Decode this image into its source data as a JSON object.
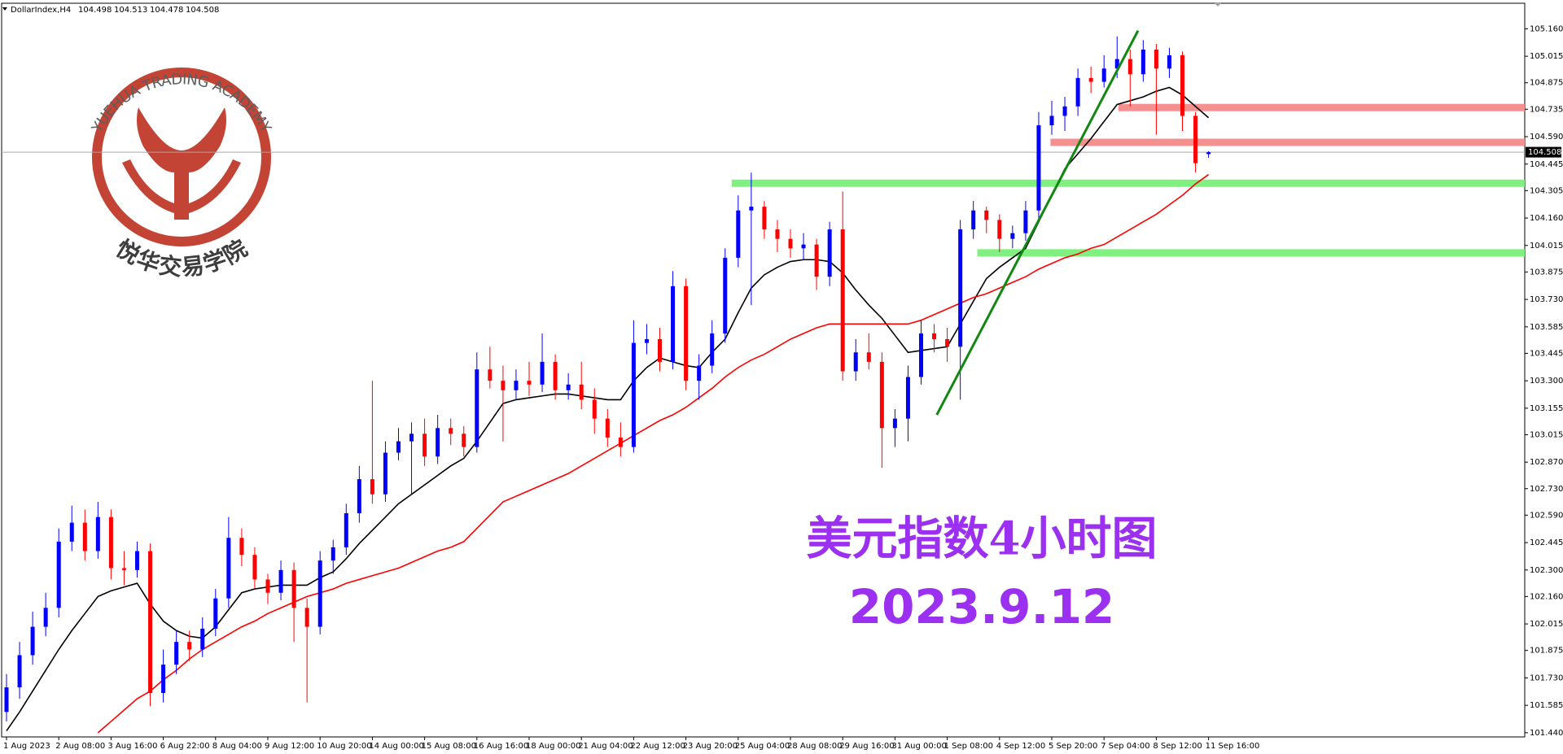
{
  "chart_data": {
    "type": "candlestick",
    "title": "DollarIndex,H4",
    "up_color": "#0000ff",
    "down_color": "#ff0000",
    "ylim": [
      101.418,
      105.295
    ],
    "yticks": [
      {
        "value": 105.16,
        "label": "105.160"
      },
      {
        "value": 105.015,
        "label": "105.015"
      },
      {
        "value": 104.875,
        "label": "104.875"
      },
      {
        "value": 104.735,
        "label": "104.735"
      },
      {
        "value": 104.59,
        "label": "104.590"
      },
      {
        "value": 104.445,
        "label": "104.445"
      },
      {
        "value": 104.305,
        "label": "104.305"
      },
      {
        "value": 104.16,
        "label": "104.160"
      },
      {
        "value": 104.015,
        "label": "104.015"
      },
      {
        "value": 103.875,
        "label": "103.875"
      },
      {
        "value": 103.73,
        "label": "103.730"
      },
      {
        "value": 103.585,
        "label": "103.585"
      },
      {
        "value": 103.445,
        "label": "103.445"
      },
      {
        "value": 103.3,
        "label": "103.300"
      },
      {
        "value": 103.155,
        "label": "103.155"
      },
      {
        "value": 103.015,
        "label": "103.015"
      },
      {
        "value": 102.87,
        "label": "102.870"
      },
      {
        "value": 102.73,
        "label": "102.730"
      },
      {
        "value": 102.59,
        "label": "102.590"
      },
      {
        "value": 102.445,
        "label": "102.445"
      },
      {
        "value": 102.3,
        "label": "102.300"
      },
      {
        "value": 102.16,
        "label": "102.160"
      },
      {
        "value": 102.015,
        "label": "102.015"
      },
      {
        "value": 101.875,
        "label": "101.875"
      },
      {
        "value": 101.73,
        "label": "101.730"
      },
      {
        "value": 101.585,
        "label": "101.585"
      },
      {
        "value": 101.44,
        "label": "101.440"
      }
    ],
    "categories": [
      "1 Aug 2023",
      null,
      null,
      null,
      "2 Aug 08:00",
      null,
      null,
      null,
      "3 Aug 16:00",
      null,
      null,
      null,
      "6 Aug 22:00",
      null,
      null,
      null,
      "8 Aug 04:00",
      null,
      null,
      null,
      "9 Aug 12:00",
      null,
      null,
      null,
      "10 Aug 20:00",
      null,
      null,
      null,
      "14 Aug 00:00",
      null,
      null,
      null,
      "15 Aug 08:00",
      null,
      null,
      null,
      "16 Aug 16:00",
      null,
      null,
      null,
      "18 Aug 00:00",
      null,
      null,
      null,
      "21 Aug 04:00",
      null,
      null,
      null,
      "22 Aug 12:00",
      null,
      null,
      null,
      "23 Aug 20:00",
      null,
      null,
      null,
      "25 Aug 04:00",
      null,
      null,
      null,
      "28 Aug 08:00",
      null,
      null,
      null,
      "29 Aug 16:00",
      null,
      null,
      null,
      "31 Aug 00:00",
      null,
      null,
      null,
      "1 Sep 08:00",
      null,
      null,
      null,
      "4 Sep 12:00",
      null,
      null,
      null,
      "5 Sep 20:00",
      null,
      null,
      null,
      "7 Sep 04:00",
      null,
      null,
      null,
      "8 Sep 12:00",
      null,
      null,
      null,
      "11 Sep 16:00"
    ],
    "ohlc": [
      [
        101.55,
        101.75,
        101.5,
        101.68
      ],
      [
        101.68,
        101.92,
        101.62,
        101.85
      ],
      [
        101.85,
        102.08,
        101.8,
        102.0
      ],
      [
        102.0,
        102.18,
        101.95,
        102.1
      ],
      [
        102.1,
        102.52,
        102.05,
        102.45
      ],
      [
        102.45,
        102.64,
        102.4,
        102.55
      ],
      [
        102.55,
        102.62,
        102.35,
        102.4
      ],
      [
        102.4,
        102.66,
        102.36,
        102.58
      ],
      [
        102.58,
        102.62,
        102.25,
        102.31
      ],
      [
        102.31,
        102.4,
        102.22,
        102.3
      ],
      [
        102.3,
        102.45,
        102.26,
        102.4
      ],
      [
        102.4,
        102.44,
        101.58,
        101.65
      ],
      [
        101.65,
        101.88,
        101.6,
        101.8
      ],
      [
        101.8,
        101.98,
        101.75,
        101.92
      ],
      [
        101.92,
        101.98,
        101.82,
        101.88
      ],
      [
        101.88,
        102.05,
        101.84,
        101.99
      ],
      [
        101.99,
        102.2,
        101.95,
        102.15
      ],
      [
        102.15,
        102.58,
        102.1,
        102.47
      ],
      [
        102.47,
        102.52,
        102.32,
        102.38
      ],
      [
        102.38,
        102.42,
        102.2,
        102.25
      ],
      [
        102.25,
        102.28,
        102.12,
        102.18
      ],
      [
        102.18,
        102.35,
        102.14,
        102.3
      ],
      [
        102.3,
        102.34,
        101.92,
        102.1
      ],
      [
        102.1,
        102.15,
        101.6,
        102.0
      ],
      [
        102.0,
        102.4,
        101.96,
        102.35
      ],
      [
        102.35,
        102.46,
        102.28,
        102.42
      ],
      [
        102.42,
        102.65,
        102.38,
        102.6
      ],
      [
        102.6,
        102.85,
        102.55,
        102.78
      ],
      [
        102.78,
        103.3,
        102.65,
        102.7
      ],
      [
        102.7,
        102.98,
        102.66,
        102.92
      ],
      [
        102.92,
        103.05,
        102.88,
        102.98
      ],
      [
        102.98,
        103.08,
        102.7,
        103.02
      ],
      [
        103.02,
        103.1,
        102.85,
        102.9
      ],
      [
        102.9,
        103.12,
        102.86,
        103.05
      ],
      [
        103.05,
        103.1,
        102.96,
        103.02
      ],
      [
        103.02,
        103.06,
        102.9,
        102.95
      ],
      [
        102.95,
        103.45,
        102.92,
        103.36
      ],
      [
        103.36,
        103.48,
        103.26,
        103.3
      ],
      [
        103.3,
        103.38,
        102.98,
        103.25
      ],
      [
        103.25,
        103.36,
        103.2,
        103.3
      ],
      [
        103.3,
        103.4,
        103.22,
        103.28
      ],
      [
        103.28,
        103.55,
        103.24,
        103.4
      ],
      [
        103.4,
        103.44,
        103.2,
        103.25
      ],
      [
        103.25,
        103.34,
        103.2,
        103.28
      ],
      [
        103.28,
        103.4,
        103.15,
        103.2
      ],
      [
        103.2,
        103.26,
        103.02,
        103.1
      ],
      [
        103.1,
        103.15,
        102.95,
        103.0
      ],
      [
        103.0,
        103.08,
        102.9,
        102.95
      ],
      [
        102.95,
        103.62,
        102.92,
        103.5
      ],
      [
        103.5,
        103.6,
        103.44,
        103.52
      ],
      [
        103.52,
        103.58,
        103.35,
        103.4
      ],
      [
        103.4,
        103.88,
        103.36,
        103.8
      ],
      [
        103.8,
        103.84,
        103.25,
        103.3
      ],
      [
        103.3,
        103.44,
        103.2,
        103.38
      ],
      [
        103.38,
        103.62,
        103.34,
        103.55
      ],
      [
        103.55,
        104.0,
        103.5,
        103.95
      ],
      [
        103.95,
        104.28,
        103.9,
        104.2
      ],
      [
        104.2,
        104.4,
        103.7,
        104.22
      ],
      [
        104.22,
        104.25,
        104.05,
        104.1
      ],
      [
        104.1,
        104.15,
        103.98,
        104.05
      ],
      [
        104.05,
        104.1,
        103.95,
        104.0
      ],
      [
        104.0,
        104.08,
        103.94,
        104.02
      ],
      [
        104.02,
        104.05,
        103.78,
        103.85
      ],
      [
        103.85,
        104.14,
        103.8,
        104.1
      ],
      [
        104.1,
        104.3,
        103.3,
        103.35
      ],
      [
        103.35,
        103.52,
        103.3,
        103.45
      ],
      [
        103.45,
        103.55,
        103.36,
        103.4
      ],
      [
        103.4,
        103.45,
        102.84,
        103.05
      ],
      [
        103.05,
        103.15,
        102.95,
        103.1
      ],
      [
        103.1,
        103.38,
        102.98,
        103.32
      ],
      [
        103.32,
        103.62,
        103.28,
        103.55
      ],
      [
        103.55,
        103.6,
        103.45,
        103.52
      ],
      [
        103.52,
        103.58,
        103.4,
        103.48
      ],
      [
        103.48,
        104.15,
        103.2,
        104.1
      ],
      [
        104.1,
        104.25,
        104.05,
        104.2
      ],
      [
        104.2,
        104.22,
        104.08,
        104.15
      ],
      [
        104.15,
        104.18,
        103.98,
        104.05
      ],
      [
        104.05,
        104.12,
        104.0,
        104.08
      ],
      [
        104.08,
        104.25,
        104.04,
        104.2
      ],
      [
        104.2,
        104.72,
        104.15,
        104.65
      ],
      [
        104.65,
        104.78,
        104.6,
        104.7
      ],
      [
        104.7,
        104.8,
        104.62,
        104.75
      ],
      [
        104.75,
        104.95,
        104.7,
        104.9
      ],
      [
        104.9,
        104.96,
        104.82,
        104.88
      ],
      [
        104.88,
        105.02,
        104.85,
        104.95
      ],
      [
        104.95,
        105.12,
        104.9,
        105.0
      ],
      [
        105.0,
        105.05,
        104.75,
        104.92
      ],
      [
        104.92,
        105.1,
        104.88,
        105.05
      ],
      [
        105.05,
        105.08,
        104.6,
        104.95
      ],
      [
        104.95,
        105.06,
        104.9,
        105.02
      ],
      [
        105.02,
        105.04,
        104.62,
        104.7
      ],
      [
        104.7,
        104.72,
        104.4,
        104.45
      ],
      [
        104.498,
        104.513,
        104.478,
        104.508
      ]
    ],
    "lines": [
      {
        "color": "#000000",
        "values": [
          101.45,
          101.55,
          101.66,
          101.77,
          101.88,
          101.98,
          102.07,
          102.16,
          102.19,
          102.21,
          102.23,
          102.12,
          102.03,
          101.98,
          101.95,
          101.94,
          102.0,
          102.09,
          102.18,
          102.2,
          102.21,
          102.22,
          102.22,
          102.22,
          102.26,
          102.29,
          102.36,
          102.44,
          102.51,
          102.58,
          102.65,
          102.7,
          102.75,
          102.8,
          102.85,
          102.89,
          102.98,
          103.08,
          103.18,
          103.2,
          103.21,
          103.22,
          103.23,
          103.23,
          103.22,
          103.21,
          103.2,
          103.2,
          103.3,
          103.37,
          103.42,
          103.4,
          103.38,
          103.37,
          103.45,
          103.52,
          103.66,
          103.79,
          103.86,
          103.9,
          103.93,
          103.94,
          103.94,
          103.93,
          103.87,
          103.78,
          103.7,
          103.63,
          103.54,
          103.45,
          103.46,
          103.47,
          103.48,
          103.6,
          103.72,
          103.84,
          103.9,
          103.95,
          104.0,
          104.14,
          104.28,
          104.42,
          104.5,
          104.58,
          104.67,
          104.76,
          104.78,
          104.8,
          104.83,
          104.85,
          104.81,
          104.75,
          104.69
        ]
      },
      {
        "color": "#ff0000",
        "values": [
          null,
          null,
          null,
          null,
          null,
          null,
          null,
          101.44,
          101.5,
          101.56,
          101.62,
          101.66,
          101.72,
          101.77,
          101.83,
          101.88,
          101.92,
          101.96,
          102.0,
          102.03,
          102.07,
          102.1,
          102.13,
          102.16,
          102.18,
          102.2,
          102.23,
          102.25,
          102.27,
          102.29,
          102.31,
          102.34,
          102.37,
          102.4,
          102.42,
          102.45,
          102.52,
          102.59,
          102.66,
          102.69,
          102.72,
          102.75,
          102.78,
          102.81,
          102.85,
          102.89,
          102.93,
          102.97,
          103.01,
          103.05,
          103.09,
          103.12,
          103.16,
          103.21,
          103.26,
          103.32,
          103.37,
          103.41,
          103.44,
          103.48,
          103.52,
          103.55,
          103.58,
          103.6,
          103.6,
          103.6,
          103.6,
          103.6,
          103.6,
          103.6,
          103.62,
          103.65,
          103.68,
          103.71,
          103.74,
          103.76,
          103.79,
          103.82,
          103.85,
          103.89,
          103.92,
          103.95,
          103.97,
          104.0,
          104.02,
          104.06,
          104.1,
          104.14,
          104.18,
          104.23,
          104.28,
          104.34,
          104.39
        ]
      }
    ],
    "levels": [
      {
        "value": 104.344,
        "start": 55.5,
        "color": "#80f080"
      },
      {
        "value": 103.976,
        "start": 74.3,
        "color": "#80f080"
      },
      {
        "value": 104.744,
        "start": 85.1,
        "color": "#f49090"
      },
      {
        "value": 104.56,
        "start": 79.9,
        "color": "#f49090"
      }
    ],
    "trendline": {
      "x": [
        71.2,
        86.6
      ],
      "y": [
        103.12,
        105.15
      ],
      "color": "#118811"
    },
    "annotations": [
      "美元指数4小时图",
      "2023.9.12"
    ],
    "watermark": {
      "text": "YUEHUA TRADING ACADEMY",
      "subtext": "悦华交易学院",
      "color": "#c0392b"
    }
  }
}
